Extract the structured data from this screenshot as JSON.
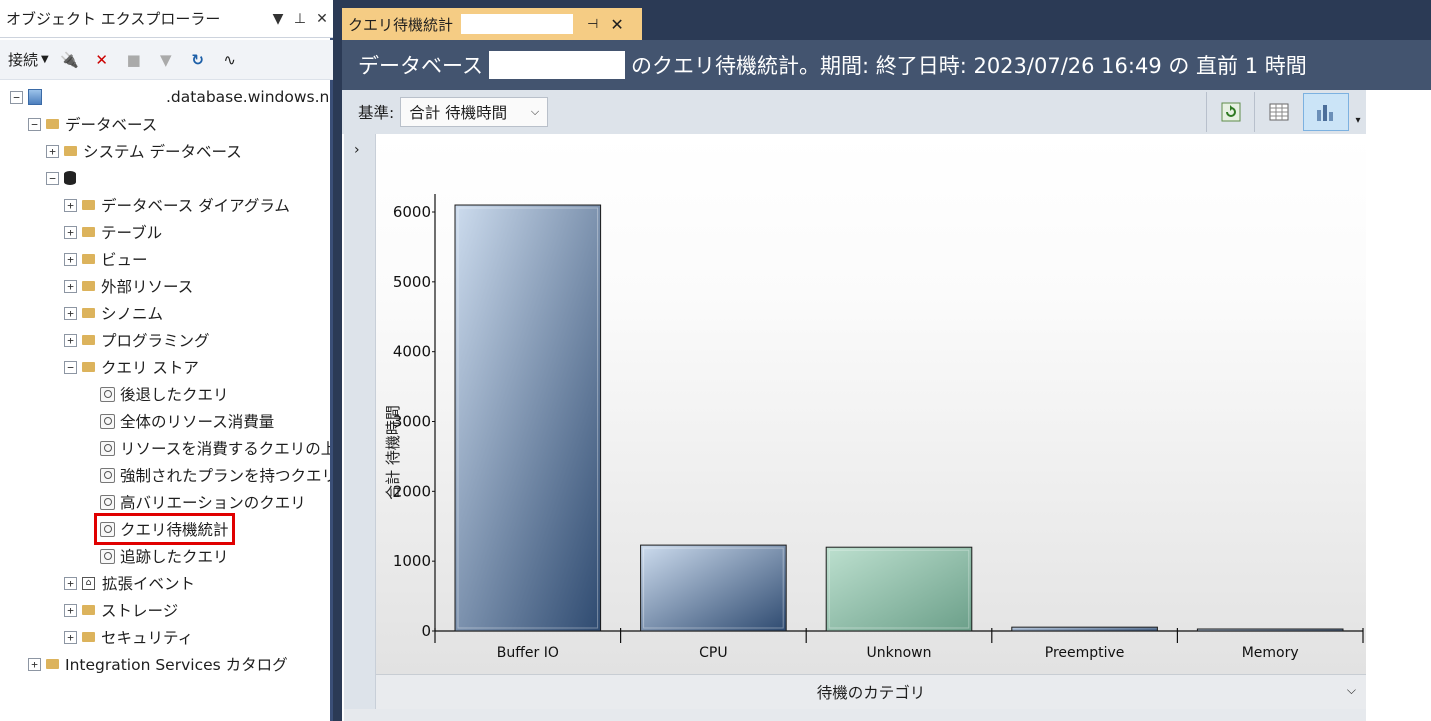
{
  "object_explorer": {
    "title": "オブジェクト エクスプローラー",
    "toolbar": {
      "connect_label": "接続"
    },
    "tree": {
      "server": ".database.windows.net",
      "databases": "データベース",
      "system_databases": "システム データベース",
      "db_items": [
        "データベース ダイアグラム",
        "テーブル",
        "ビュー",
        "外部リソース",
        "シノニム",
        "プログラミング"
      ],
      "query_store": "クエリ ストア",
      "qs_items": [
        "後退したクエリ",
        "全体のリソース消費量",
        "リソースを消費するクエリの上位",
        "強制されたプランを持つクエリ",
        "高バリエーションのクエリ",
        "クエリ待機統計",
        "追跡したクエリ"
      ],
      "after_items": [
        "拡張イベント",
        "ストレージ",
        "セキュリティ"
      ],
      "integration_services": "Integration Services カタログ"
    }
  },
  "document": {
    "tab_title": "クエリ待機統計",
    "header_prefix": "データベース",
    "header_suffix": "のクエリ待機統計。期間: 終了日時: 2023/07/26 16:49 の 直前 1 時間",
    "basis_label": "基準:",
    "basis_value": "合計 待機時間",
    "footer_label": "待機のカテゴリ"
  },
  "chart_data": {
    "type": "bar",
    "categories": [
      "Buffer IO",
      "CPU",
      "Unknown",
      "Preemptive",
      "Memory"
    ],
    "values": [
      6100,
      1230,
      1200,
      55,
      15
    ],
    "ylabel": "合計 待機時間",
    "xlabel": "待機のカテゴリ",
    "ylim": [
      0,
      6000
    ],
    "yticks": [
      0,
      1000,
      2000,
      3000,
      4000,
      5000,
      6000
    ],
    "grid": false,
    "colors": {
      "blue_light": "#cddcee",
      "blue_dark": "#2e4a70",
      "green_light": "#bde0cf",
      "green_dark": "#6b9f89"
    }
  }
}
